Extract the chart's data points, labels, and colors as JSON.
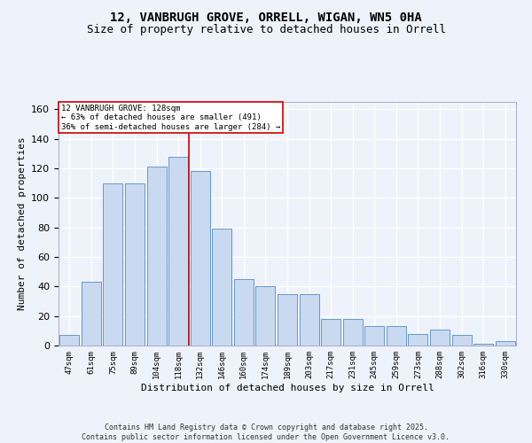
{
  "title": "12, VANBRUGH GROVE, ORRELL, WIGAN, WN5 0HA",
  "subtitle": "Size of property relative to detached houses in Orrell",
  "xlabel": "Distribution of detached houses by size in Orrell",
  "ylabel": "Number of detached properties",
  "categories": [
    "47sqm",
    "61sqm",
    "75sqm",
    "89sqm",
    "104sqm",
    "118sqm",
    "132sqm",
    "146sqm",
    "160sqm",
    "174sqm",
    "189sqm",
    "203sqm",
    "217sqm",
    "231sqm",
    "245sqm",
    "259sqm",
    "273sqm",
    "288sqm",
    "302sqm",
    "316sqm",
    "330sqm"
  ],
  "values": [
    7,
    43,
    110,
    110,
    121,
    128,
    118,
    79,
    45,
    40,
    35,
    35,
    18,
    18,
    13,
    13,
    8,
    11,
    7,
    1,
    3
  ],
  "bar_color": "#c9d9f0",
  "bar_edge_color": "#6699cc",
  "reference_line_x": 5.5,
  "reference_label": "12 VANBRUGH GROVE: 128sqm",
  "pct_smaller": "63% of detached houses are smaller (491)",
  "pct_larger": "36% of semi-detached houses are larger (284)",
  "annotation_box_color": "#ffffff",
  "annotation_box_edge": "#cc0000",
  "vline_color": "#cc0000",
  "ylim": [
    0,
    165
  ],
  "yticks": [
    0,
    20,
    40,
    60,
    80,
    100,
    120,
    140,
    160
  ],
  "footer_line1": "Contains HM Land Registry data © Crown copyright and database right 2025.",
  "footer_line2": "Contains public sector information licensed under the Open Government Licence v3.0.",
  "bg_color": "#eef2fb",
  "grid_color": "#ffffff",
  "title_fontsize": 10,
  "subtitle_fontsize": 9
}
